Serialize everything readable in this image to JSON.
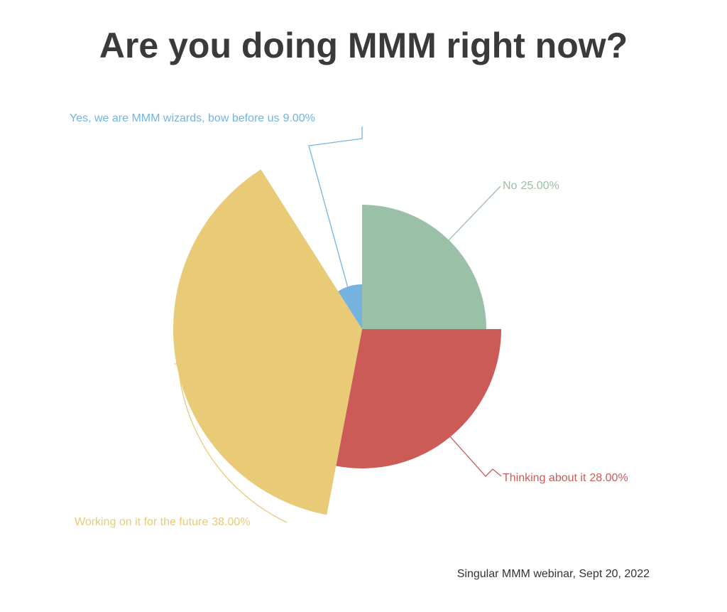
{
  "chart_data": {
    "type": "rose",
    "title": "Are you doing MMM right now?",
    "categories": [
      "No",
      "Thinking about it",
      "Working on it for the future",
      "Yes, we are MMM wizards, bow before us"
    ],
    "values": [
      25,
      28,
      38,
      9
    ],
    "value_labels": [
      "25.00%",
      "28.00%",
      "38.00%",
      "9.00%"
    ],
    "colors": [
      "#9ac0a7",
      "#cc5b57",
      "#e8ca77",
      "#74b3e0"
    ],
    "source": "Singular MMM webinar, Sept 20, 2022"
  }
}
